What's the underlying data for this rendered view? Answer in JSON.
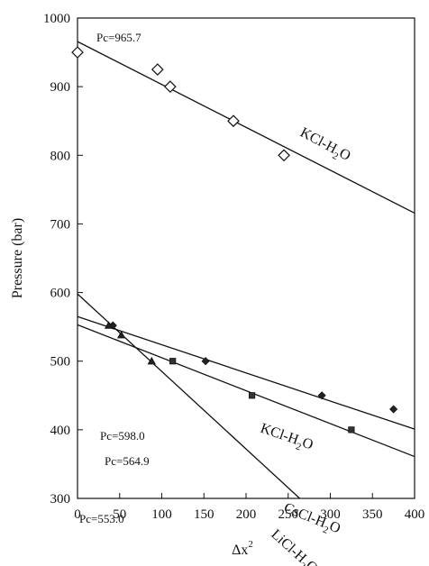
{
  "chart_data": {
    "type": "scatter",
    "xlabel": "Δx",
    "xlabel_sup": "2",
    "ylabel": "Pressure (bar)",
    "xlim": [
      0,
      400
    ],
    "ylim": [
      300,
      1000
    ],
    "xticks": [
      0,
      50,
      100,
      150,
      200,
      250,
      300,
      350,
      400
    ],
    "yticks": [
      300,
      400,
      500,
      600,
      700,
      800,
      900,
      1000
    ],
    "grid": false,
    "series": [
      {
        "name": "KCl-H2O",
        "label_main": "KCl-H",
        "label_sub": "2",
        "label_tail": "O",
        "marker": "open-diamond",
        "points": [
          [
            0,
            950
          ],
          [
            95,
            925
          ],
          [
            110,
            900
          ],
          [
            185,
            850
          ],
          [
            245,
            800
          ]
        ],
        "fit": {
          "intercept": 965.7,
          "slope": -0.625
        },
        "annotation": "Pc=965.7"
      },
      {
        "name": "KCl-H2O",
        "label_main": "KCl-H",
        "label_sub": "2",
        "label_tail": "O",
        "marker": "filled-diamond",
        "points": [
          [
            42,
            552
          ],
          [
            152,
            500
          ],
          [
            290,
            450
          ],
          [
            375,
            430
          ]
        ],
        "fit": {
          "intercept": 564.9,
          "slope": -0.41
        },
        "annotation": "Pc=564.9"
      },
      {
        "name": "CsCl-H2O",
        "label_main": "CsCl-H",
        "label_sub": "2",
        "label_tail": "O",
        "marker": "filled-square",
        "points": [
          [
            113,
            500
          ],
          [
            207,
            450
          ],
          [
            325,
            400
          ]
        ],
        "fit": {
          "intercept": 553.0,
          "slope": -0.48
        },
        "annotation": "Pc=553.0"
      },
      {
        "name": "LiCl-H2O",
        "label_main": "LiCl-H",
        "label_sub": "2",
        "label_tail": "O",
        "marker": "filled-triangle",
        "points": [
          [
            37,
            552
          ],
          [
            52,
            538
          ],
          [
            88,
            500
          ]
        ],
        "fit": {
          "intercept": 598.0,
          "slope": -1.13
        },
        "annotation": "Pc=598.0"
      }
    ]
  }
}
